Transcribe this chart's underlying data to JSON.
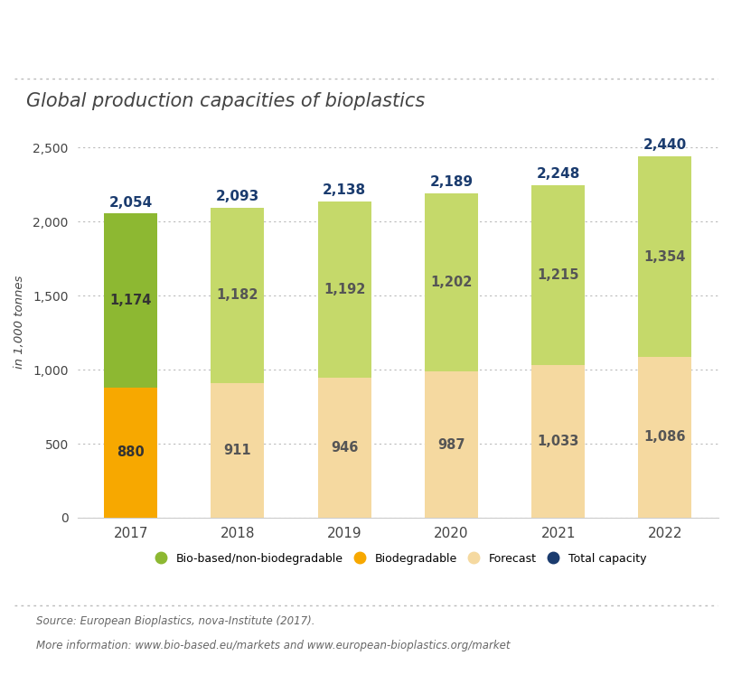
{
  "title": "Global production capacities of bioplastics",
  "ylabel": "in 1,000 tonnes",
  "years": [
    "2017",
    "2018",
    "2019",
    "2020",
    "2021",
    "2022"
  ],
  "biodegradable": [
    880,
    0,
    0,
    0,
    0,
    0
  ],
  "forecast_bottom": [
    0,
    911,
    946,
    987,
    1033,
    1086
  ],
  "bio_based_2017": 1174,
  "bio_based_forecast": [
    0,
    1182,
    1192,
    1202,
    1215,
    1354
  ],
  "totals": [
    2054,
    2093,
    2138,
    2189,
    2248,
    2440
  ],
  "color_biodegradable": "#F7A800",
  "color_forecast_bottom": "#F5D9A0",
  "color_bio_based_2017": "#8DB832",
  "color_bio_based_forecast": "#C5D96A",
  "color_total": "#1A3B6E",
  "ylim": [
    0,
    2650
  ],
  "yticks": [
    0,
    500,
    1000,
    1500,
    2000,
    2500
  ],
  "background_color": "#FFFFFF",
  "source_line1": "Source: European Bioplastics, nova-Institute (2017).",
  "source_line2": "More information: www.bio-based.eu/markets and www.european-bioplastics.org/market",
  "legend_labels": [
    "Bio-based/non-biodegradable",
    "Biodegradable",
    "Forecast",
    "Total capacity"
  ],
  "bar_width": 0.5
}
